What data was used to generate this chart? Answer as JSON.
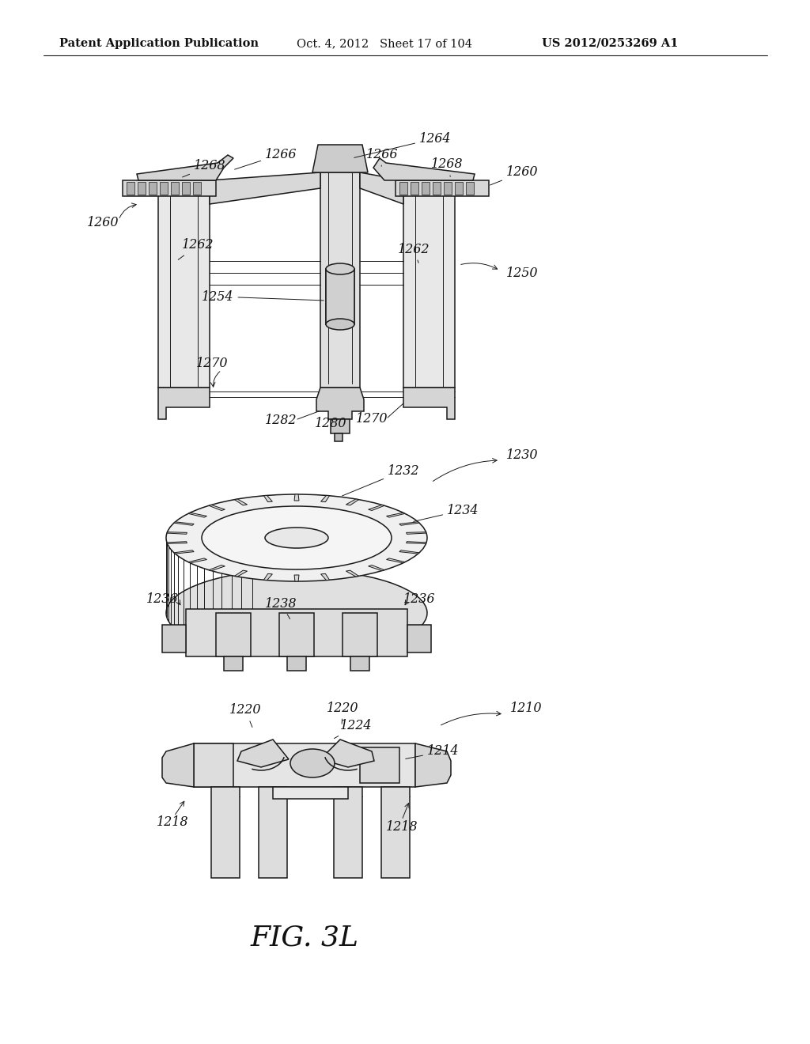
{
  "bg_color": "#ffffff",
  "line_color": "#1a1a1a",
  "header_left": "Patent Application Publication",
  "header_mid": "Oct. 4, 2012   Sheet 17 of 104",
  "header_right": "US 2012/0253269 A1",
  "fig_label": "FIG. 3L",
  "fig_label_fontsize": 26,
  "header_fontsize": 10.5,
  "label_fontsize": 11.5,
  "lw_main": 1.1,
  "lw_thin": 0.7,
  "lw_thick": 1.5
}
